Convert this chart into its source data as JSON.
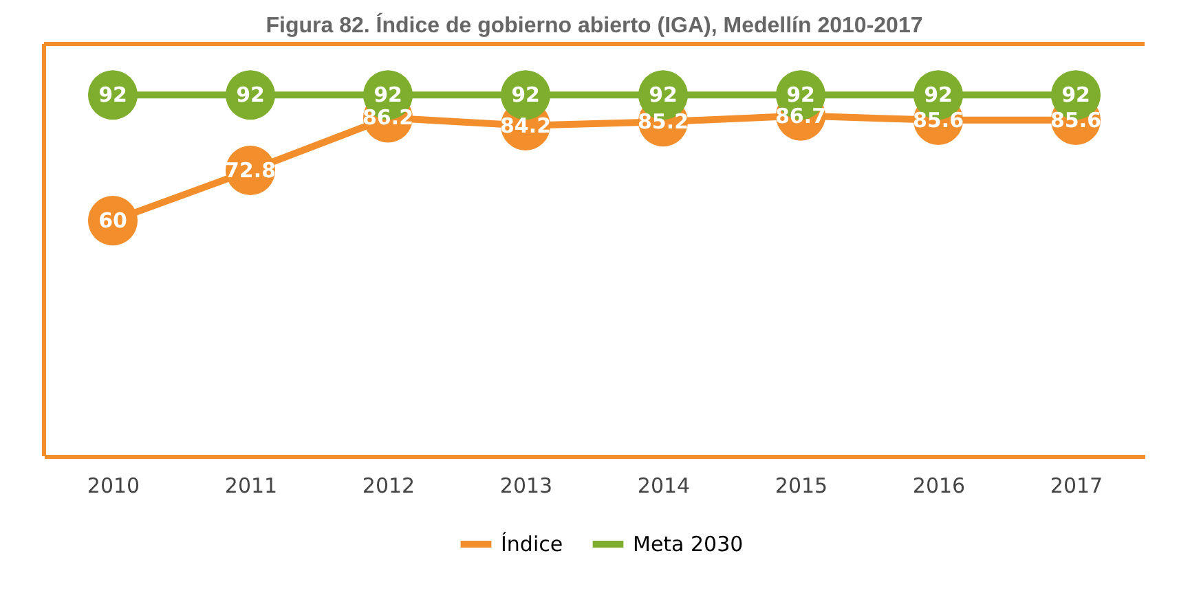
{
  "chart_data": {
    "type": "line",
    "title": "Figura 82. Índice de gobierno abierto (IGA), Medellín 2010-2017",
    "categories": [
      "2010",
      "2011",
      "2012",
      "2013",
      "2014",
      "2015",
      "2016",
      "2017"
    ],
    "series": [
      {
        "name": "Índice",
        "color": "#f28e2b",
        "values": [
          60,
          72.8,
          86.2,
          84.2,
          85.2,
          86.7,
          85.6,
          85.6
        ]
      },
      {
        "name": "Meta 2030",
        "color": "#7fae2e",
        "values": [
          92,
          92,
          92,
          92,
          92,
          92,
          92,
          92
        ]
      }
    ],
    "ylim": [
      0,
      105
    ],
    "data_labels": true,
    "marker": "circle",
    "line_style": "solid",
    "legend": "bottom",
    "grid": false,
    "tick_labels": "x"
  }
}
